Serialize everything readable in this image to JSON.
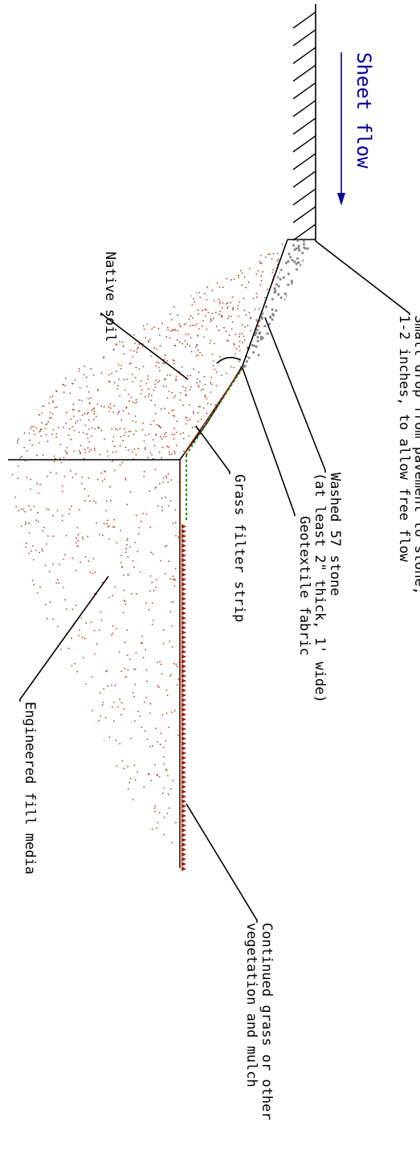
{
  "colors": {
    "soil_dots": "#b0441f",
    "stone": "#8a8a8a",
    "grass": "#1f8a1f",
    "mulch": "#8b2a1a",
    "fabric": "#8b1a0a",
    "flow": "#0000a0"
  },
  "flow": {
    "label": "Sheet flow",
    "arrow_icon": "arrow-down"
  },
  "callouts": [
    {
      "id": "drop",
      "lines": [
        "Small drop from pavement to stone,",
        "1-2 inches, to allow free flow"
      ]
    },
    {
      "id": "stone",
      "lines": [
        "Washed 57 stone",
        "(at least 2\" thick, 1' wide)"
      ]
    },
    {
      "id": "fabric",
      "lines": [
        "Geotextile fabric"
      ]
    },
    {
      "id": "grass",
      "lines": [
        "Grass filter strip"
      ]
    },
    {
      "id": "mulch",
      "lines": [
        "Continued grass or other",
        "vegetation and mulch"
      ]
    },
    {
      "id": "fill",
      "lines": [
        "Engineered fill media"
      ]
    },
    {
      "id": "soil",
      "lines": [
        "Native soil"
      ]
    }
  ]
}
